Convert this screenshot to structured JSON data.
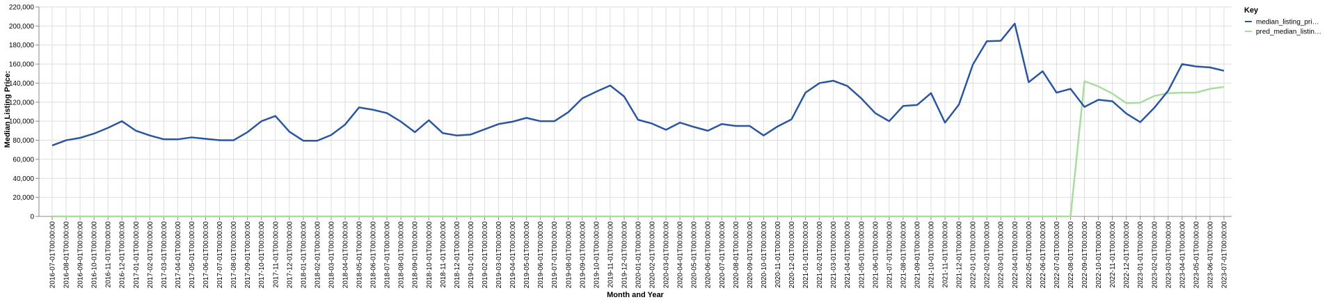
{
  "chart_data": {
    "type": "line",
    "xlabel": "Month and Year",
    "ylabel": "Median Listing Price:",
    "ylim": [
      0,
      220000
    ],
    "yticks": [
      "0",
      "20,000",
      "40,000",
      "60,000",
      "80,000",
      "100,000",
      "120,000",
      "140,000",
      "160,000",
      "180,000",
      "200,000",
      "220,000"
    ],
    "grid": true,
    "legend": {
      "title": "Key",
      "placement": "right"
    },
    "x": [
      "2016-07-01T00:00:00",
      "2016-08-01T00:00:00",
      "2016-09-01T00:00:00",
      "2016-10-01T00:00:00",
      "2016-11-01T00:00:00",
      "2016-12-01T00:00:00",
      "2017-01-01T00:00:00",
      "2017-02-01T00:00:00",
      "2017-03-01T00:00:00",
      "2017-04-01T00:00:00",
      "2017-05-01T00:00:00",
      "2017-06-01T00:00:00",
      "2017-07-01T00:00:00",
      "2017-08-01T00:00:00",
      "2017-09-01T00:00:00",
      "2017-10-01T00:00:00",
      "2017-11-01T00:00:00",
      "2017-12-01T00:00:00",
      "2018-01-01T00:00:00",
      "2018-02-01T00:00:00",
      "2018-03-01T00:00:00",
      "2018-04-01T00:00:00",
      "2018-05-01T00:00:00",
      "2018-06-01T00:00:00",
      "2018-07-01T00:00:00",
      "2018-08-01T00:00:00",
      "2018-09-01T00:00:00",
      "2018-10-01T00:00:00",
      "2018-11-01T00:00:00",
      "2018-12-01T00:00:00",
      "2019-01-01T00:00:00",
      "2019-02-01T00:00:00",
      "2019-03-01T00:00:00",
      "2019-04-01T00:00:00",
      "2019-05-01T00:00:00",
      "2019-06-01T00:00:00",
      "2019-07-01T00:00:00",
      "2019-08-01T00:00:00",
      "2019-09-01T00:00:00",
      "2019-10-01T00:00:00",
      "2019-11-01T00:00:00",
      "2019-12-01T00:00:00",
      "2020-01-01T00:00:00",
      "2020-02-01T00:00:00",
      "2020-03-01T00:00:00",
      "2020-04-01T00:00:00",
      "2020-05-01T00:00:00",
      "2020-06-01T00:00:00",
      "2020-07-01T00:00:00",
      "2020-08-01T00:00:00",
      "2020-09-01T00:00:00",
      "2020-10-01T00:00:00",
      "2020-11-01T00:00:00",
      "2020-12-01T00:00:00",
      "2021-01-01T00:00:00",
      "2021-02-01T00:00:00",
      "2021-03-01T00:00:00",
      "2021-04-01T00:00:00",
      "2021-05-01T00:00:00",
      "2021-06-01T00:00:00",
      "2021-07-01T00:00:00",
      "2021-08-01T00:00:00",
      "2021-09-01T00:00:00",
      "2021-10-01T00:00:00",
      "2021-11-01T00:00:00",
      "2021-12-01T00:00:00",
      "2022-01-01T00:00:00",
      "2022-02-01T00:00:00",
      "2022-03-01T00:00:00",
      "2022-04-01T00:00:00",
      "2022-05-01T00:00:00",
      "2022-06-01T00:00:00",
      "2022-07-01T00:00:00",
      "2022-08-01T00:00:00",
      "2022-09-01T00:00:00",
      "2022-10-01T00:00:00",
      "2022-11-01T00:00:00",
      "2022-12-01T00:00:00",
      "2023-01-01T00:00:00",
      "2023-02-01T00:00:00",
      "2023-03-01T00:00:00",
      "2023-04-01T00:00:00",
      "2023-05-01T00:00:00",
      "2023-06-01T00:00:00",
      "2023-07-01T00:00:00"
    ],
    "series": [
      {
        "name": "median_listing_pri…",
        "color": "#2a56a0",
        "values": [
          74500,
          80000,
          82500,
          87000,
          93000,
          100000,
          90000,
          85000,
          81000,
          81000,
          83000,
          81500,
          80000,
          80000,
          88500,
          100000,
          105500,
          89000,
          79500,
          79500,
          85500,
          96500,
          114500,
          112000,
          108500,
          99500,
          88500,
          101000,
          87500,
          85000,
          86000,
          91500,
          97000,
          99500,
          103500,
          100000,
          100000,
          109500,
          124000,
          131000,
          137500,
          126000,
          101500,
          97500,
          91000,
          98500,
          94000,
          90000,
          97000,
          95000,
          95000,
          85000,
          94500,
          102000,
          130000,
          140000,
          142500,
          137000,
          124000,
          108500,
          100000,
          116000,
          117000,
          129500,
          98500,
          117500,
          159500,
          184000,
          184500,
          202500,
          141000,
          152500,
          130000,
          134000,
          115000,
          122500,
          121000,
          108000,
          99000,
          114000,
          132000,
          160000,
          157500,
          156500,
          153000
        ]
      },
      {
        "name": "pred_median_listin…",
        "color": "#a8dd9e",
        "values": [
          0,
          0,
          0,
          0,
          0,
          0,
          0,
          0,
          0,
          0,
          0,
          0,
          0,
          0,
          0,
          0,
          0,
          0,
          0,
          0,
          0,
          0,
          0,
          0,
          0,
          0,
          0,
          0,
          0,
          0,
          0,
          0,
          0,
          0,
          0,
          0,
          0,
          0,
          0,
          0,
          0,
          0,
          0,
          0,
          0,
          0,
          0,
          0,
          0,
          0,
          0,
          0,
          0,
          0,
          0,
          0,
          0,
          0,
          0,
          0,
          0,
          0,
          0,
          0,
          0,
          0,
          0,
          0,
          0,
          0,
          0,
          0,
          0,
          0,
          142000,
          136500,
          129000,
          119000,
          119500,
          126500,
          129500,
          130000,
          130000,
          134000,
          136000
        ]
      }
    ]
  }
}
